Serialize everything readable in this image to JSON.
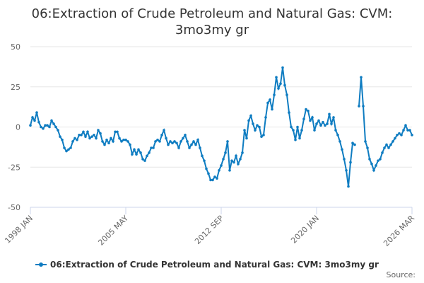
{
  "chart_data": {
    "type": "line",
    "title": "06:Extraction of Crude Petroleum and Natural Gas: CVM: 3mo3my gr",
    "source": "Source:",
    "categories": [
      "1998 JAN",
      null,
      null,
      null,
      null,
      null,
      null,
      null,
      null,
      null,
      null,
      null,
      null,
      null,
      null,
      null,
      null,
      null,
      null,
      null,
      null,
      null,
      null,
      null,
      null,
      null,
      null,
      null,
      null,
      null,
      null,
      null,
      null,
      null,
      null,
      null,
      null,
      null,
      null,
      null,
      null,
      null,
      null,
      null,
      null,
      "2005 MAY",
      null,
      null,
      null,
      null,
      null,
      null,
      null,
      null,
      null,
      null,
      null,
      null,
      null,
      null,
      null,
      null,
      null,
      null,
      null,
      null,
      null,
      null,
      null,
      null,
      null,
      null,
      null,
      null,
      null,
      null,
      null,
      null,
      null,
      null,
      null,
      null,
      null,
      null,
      null,
      null,
      null,
      null,
      null,
      null,
      "2012 SEP",
      null,
      null,
      null,
      null,
      null,
      null,
      null,
      null,
      null,
      null,
      null,
      null,
      null,
      null,
      null,
      null,
      null,
      null,
      null,
      null,
      null,
      null,
      null,
      null,
      null,
      null,
      null,
      null,
      null,
      null,
      null,
      null,
      null,
      null,
      null,
      null,
      null,
      null,
      null,
      null,
      null,
      null,
      null,
      null,
      "2020 JAN",
      null,
      null,
      null,
      null,
      null,
      null,
      null,
      null,
      null,
      null,
      null,
      null,
      null,
      null,
      null,
      null,
      null,
      null,
      null,
      null,
      null,
      null,
      null,
      null,
      null,
      null,
      null,
      null,
      null,
      null,
      null,
      null,
      null,
      null,
      null,
      null,
      null,
      null,
      null,
      null,
      null,
      null,
      null,
      null,
      "2026 MAR"
    ],
    "series": [
      {
        "name": "06:Extraction of Crude Petroleum and Natural Gas: CVM: 3mo3my gr",
        "color": "#0e7cc1",
        "values": [
          1,
          6,
          4,
          9,
          3,
          0,
          -1,
          1,
          1,
          0,
          4,
          2,
          0,
          -2,
          -6,
          -8,
          -13,
          -15,
          -14,
          -13,
          -9,
          -7,
          -8,
          -5,
          -5,
          -3,
          -6,
          -3,
          -7,
          -6,
          -5,
          -7,
          -2,
          -4,
          -9,
          -11,
          -8,
          -10,
          -7,
          -9,
          -3,
          -3,
          -7,
          -9,
          -8,
          -8,
          -9,
          -11,
          -17,
          -14,
          -17,
          -14,
          -16,
          -20,
          -21,
          -18,
          -16,
          -13,
          -13,
          -9,
          -8,
          -9,
          -5,
          -2,
          -7,
          -11,
          -9,
          -10,
          -9,
          -10,
          -13,
          -9,
          -7,
          -5,
          -9,
          -13,
          -11,
          -9,
          -11,
          -8,
          -13,
          -18,
          -21,
          -26,
          -29,
          -33,
          -33,
          -31,
          -32,
          -27,
          -24,
          -20,
          -16,
          -9,
          -27,
          -21,
          -22,
          -18,
          -23,
          -20,
          -16,
          -2,
          -7,
          4,
          7,
          2,
          -2,
          1,
          0,
          -6,
          -5,
          6,
          15,
          17,
          11,
          20,
          31,
          24,
          27,
          37,
          26,
          20,
          9,
          0,
          -2,
          -8,
          0,
          -7,
          -2,
          5,
          11,
          10,
          4,
          6,
          -2,
          2,
          4,
          1,
          3,
          1,
          2,
          8,
          2,
          6,
          -2,
          -5,
          -9,
          -14,
          -20,
          -27,
          -37,
          -22,
          -10,
          -11,
          null,
          13,
          31,
          13,
          -9,
          -13,
          -20,
          -23,
          -27,
          -24,
          -21,
          -20,
          -16,
          -13,
          -11,
          -13,
          -11,
          -9,
          -7,
          -5,
          -4,
          -5,
          -2,
          1,
          -2,
          -2,
          -5
        ]
      }
    ],
    "ylim": [
      -50,
      50
    ],
    "yticks": [
      -50,
      -25,
      0,
      25,
      50
    ],
    "grid": true
  }
}
